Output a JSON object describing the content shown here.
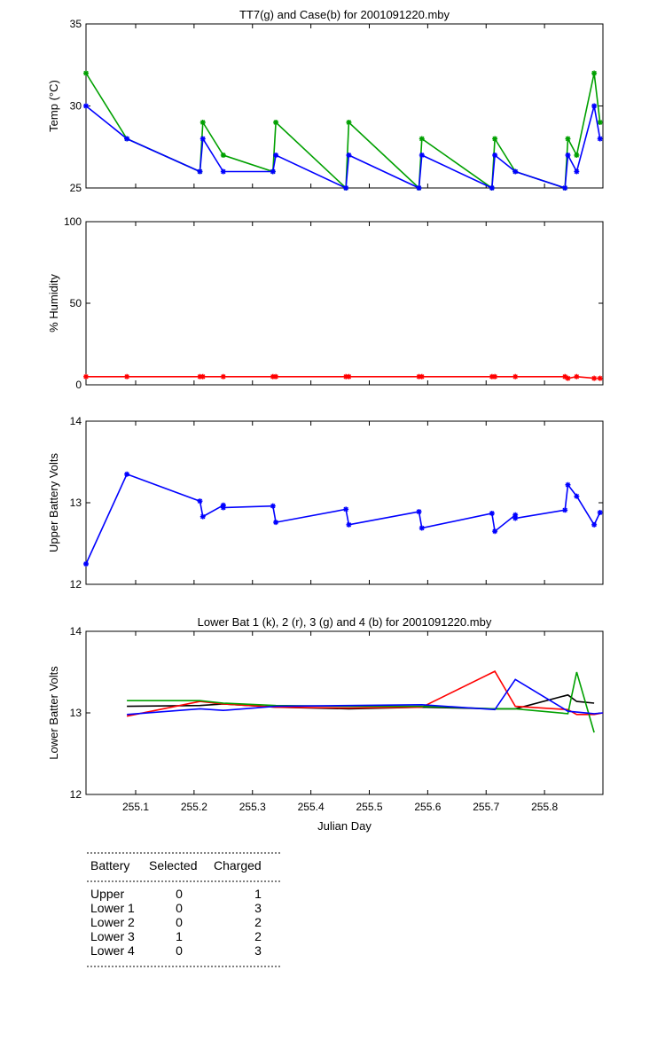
{
  "chart_data": [
    {
      "id": "temp",
      "type": "line",
      "title": "TT7(g) and Case(b) for 2001091220.mby",
      "xlabel": "",
      "ylabel": "Temp  (°C)",
      "xlim": [
        255.015,
        255.9
      ],
      "ylim": [
        25,
        35
      ],
      "yticks": [
        "25",
        "30",
        "35"
      ],
      "xticks": [],
      "grid": false,
      "series": [
        {
          "color": "#00a000",
          "marker": "asterisk",
          "x": [
            255.015,
            255.085,
            255.21,
            255.215,
            255.25,
            255.335,
            255.34,
            255.46,
            255.465,
            255.585,
            255.59,
            255.71,
            255.715,
            255.75,
            255.835,
            255.84,
            255.855,
            255.885,
            255.895
          ],
          "y": [
            32,
            28,
            26,
            29,
            27,
            26,
            29,
            25,
            29,
            25,
            28,
            25,
            28,
            26,
            25,
            28,
            27,
            32,
            29
          ]
        },
        {
          "color": "#0000ff",
          "marker": "asterisk",
          "x": [
            255.015,
            255.085,
            255.21,
            255.215,
            255.25,
            255.335,
            255.34,
            255.46,
            255.465,
            255.585,
            255.59,
            255.71,
            255.715,
            255.75,
            255.835,
            255.84,
            255.855,
            255.885,
            255.895
          ],
          "y": [
            30,
            28,
            26,
            28,
            26,
            26,
            27,
            25,
            27,
            25,
            27,
            25,
            27,
            26,
            25,
            27,
            26,
            30,
            28
          ]
        }
      ]
    },
    {
      "id": "humidity",
      "type": "line",
      "title": "",
      "xlabel": "",
      "ylabel": "% Humidity",
      "xlim": [
        255.015,
        255.9
      ],
      "ylim": [
        0,
        100
      ],
      "yticks": [
        "0",
        "50",
        "100"
      ],
      "xticks": [],
      "grid": false,
      "series": [
        {
          "color": "#ff0000",
          "marker": "asterisk",
          "x": [
            255.015,
            255.085,
            255.21,
            255.215,
            255.25,
            255.335,
            255.34,
            255.46,
            255.465,
            255.585,
            255.59,
            255.71,
            255.715,
            255.75,
            255.835,
            255.84,
            255.855,
            255.885,
            255.895
          ],
          "y": [
            5,
            5,
            5,
            5,
            5,
            5,
            5,
            5,
            5,
            5,
            5,
            5,
            5,
            5,
            5,
            4,
            5,
            4,
            4
          ]
        }
      ]
    },
    {
      "id": "upper",
      "type": "line",
      "title": "",
      "xlabel": "",
      "ylabel": "Upper Battery Volts",
      "xlim": [
        255.015,
        255.9
      ],
      "ylim": [
        12,
        14
      ],
      "yticks": [
        "12",
        "13",
        "14"
      ],
      "xticks": [],
      "grid": false,
      "series": [
        {
          "color": "#0000ff",
          "marker": "asterisk",
          "x": [
            255.015,
            255.085,
            255.21,
            255.215,
            255.25,
            255.25,
            255.335,
            255.34,
            255.46,
            255.465,
            255.585,
            255.59,
            255.71,
            255.715,
            255.75,
            255.75,
            255.835,
            255.84,
            255.855,
            255.885,
            255.895
          ],
          "y": [
            12.25,
            13.35,
            13.02,
            12.83,
            12.97,
            12.94,
            12.96,
            12.76,
            12.92,
            12.73,
            12.89,
            12.69,
            12.87,
            12.65,
            12.85,
            12.81,
            12.91,
            13.22,
            13.08,
            12.73,
            12.88
          ]
        }
      ]
    },
    {
      "id": "lower",
      "type": "line",
      "title": "Lower Bat 1 (k), 2 (r), 3 (g) and 4 (b) for 2001091220.mby",
      "xlabel": "Julian Day",
      "ylabel": "Lower Batter Volts",
      "xlim": [
        255.015,
        255.9
      ],
      "ylim": [
        12,
        14
      ],
      "yticks": [
        "12",
        "13",
        "14"
      ],
      "xticks": [
        "255.1",
        "255.2",
        "255.3",
        "255.4",
        "255.5",
        "255.6",
        "255.7",
        "255.8"
      ],
      "xtick_values": [
        255.1,
        255.2,
        255.3,
        255.4,
        255.5,
        255.6,
        255.7,
        255.8
      ],
      "grid": false,
      "series": [
        {
          "color": "#000000",
          "marker": "none",
          "x": [
            255.085,
            255.21,
            255.25,
            255.34,
            255.465,
            255.59,
            255.715,
            255.75,
            255.84,
            255.855,
            255.885
          ],
          "y": [
            13.08,
            13.09,
            13.11,
            13.07,
            13.05,
            13.07,
            13.05,
            13.05,
            13.22,
            13.14,
            13.12
          ]
        },
        {
          "color": "#ff0000",
          "marker": "none",
          "x": [
            255.085,
            255.21,
            255.25,
            255.34,
            255.465,
            255.59,
            255.715,
            255.75,
            255.84,
            255.855,
            255.885,
            255.9
          ],
          "y": [
            12.96,
            13.14,
            13.11,
            13.07,
            13.06,
            13.07,
            13.51,
            13.08,
            13.04,
            12.98,
            12.98,
            13.0
          ]
        },
        {
          "color": "#00a000",
          "marker": "none",
          "x": [
            255.085,
            255.21,
            255.25,
            255.34,
            255.465,
            255.59,
            255.715,
            255.75,
            255.84,
            255.855,
            255.885
          ],
          "y": [
            13.15,
            13.15,
            13.12,
            13.09,
            13.08,
            13.08,
            13.05,
            13.05,
            12.99,
            13.5,
            12.76
          ]
        },
        {
          "color": "#0000ff",
          "marker": "none",
          "x": [
            255.085,
            255.21,
            255.25,
            255.34,
            255.465,
            255.59,
            255.715,
            255.75,
            255.84,
            255.855,
            255.885,
            255.9
          ],
          "y": [
            12.98,
            13.05,
            13.03,
            13.08,
            13.09,
            13.1,
            13.04,
            13.41,
            13.02,
            13.01,
            12.99,
            13.0
          ]
        }
      ]
    }
  ],
  "battery_table": {
    "headers": [
      "Battery",
      "Selected",
      "Charged"
    ],
    "rows": [
      [
        "Upper",
        "0",
        "1"
      ],
      [
        "Lower 1",
        "0",
        "3"
      ],
      [
        "Lower 2",
        "0",
        "2"
      ],
      [
        "Lower 3",
        "1",
        "2"
      ],
      [
        "Lower 4",
        "0",
        "3"
      ]
    ]
  }
}
